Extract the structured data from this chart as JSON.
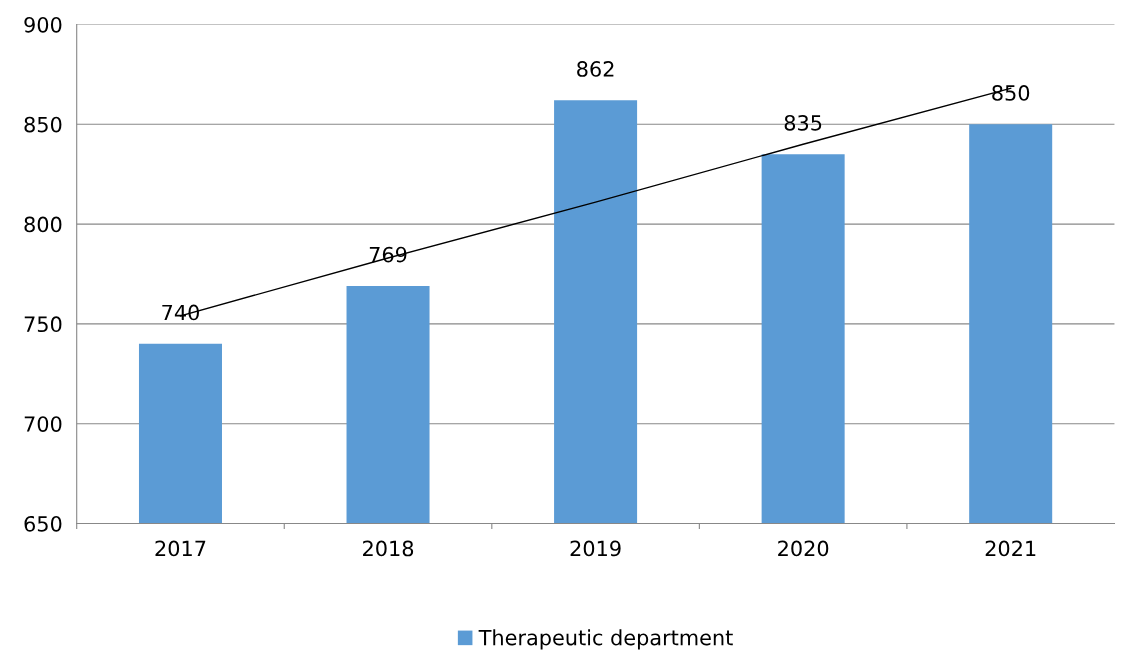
{
  "chart_data": {
    "type": "bar",
    "categories": [
      "2017",
      "2018",
      "2019",
      "2020",
      "2021"
    ],
    "series": [
      {
        "name": "Therapeutic department",
        "color": "#5b9bd5",
        "values": [
          740,
          769,
          862,
          835,
          850
        ],
        "value_labels": [
          "740",
          "769",
          "862",
          "835",
          "850"
        ]
      },
      {
        "type": "line",
        "color": "#000000",
        "values": [
          754,
          783,
          811,
          840,
          868
        ]
      }
    ],
    "ylim": [
      650,
      900
    ],
    "yticks": [
      650,
      700,
      750,
      800,
      850,
      900
    ],
    "grid": "y",
    "legend": "bottom"
  }
}
